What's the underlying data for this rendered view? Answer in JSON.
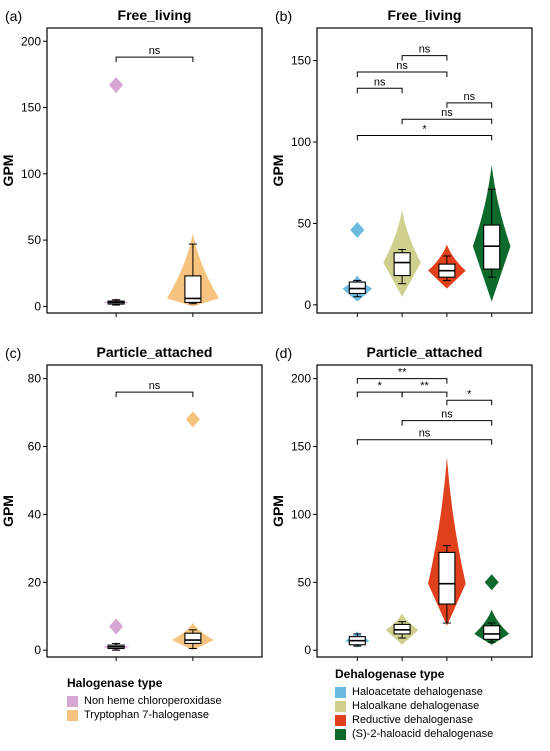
{
  "colors": {
    "non_heme": "#D7A7D3",
    "tryptophan": "#F6C37F",
    "haloacetate": "#6BBBE0",
    "haloalkane": "#CFCF8E",
    "reductive": "#E0401B",
    "haloacid": "#0E6A2C"
  },
  "legends": {
    "halogenase": {
      "title": "Halogenase type",
      "items": [
        {
          "label": "Non heme chloroperoxidase",
          "color_key": "non_heme"
        },
        {
          "label": "Tryptophan 7-halogenase",
          "color_key": "tryptophan"
        }
      ]
    },
    "dehalogenase": {
      "title": "Dehalogenase type",
      "items": [
        {
          "label": "Haloacetate dehalogenase",
          "color_key": "haloacetate"
        },
        {
          "label": "Haloalkane dehalogenase",
          "color_key": "haloalkane"
        },
        {
          "label": "Reductive dehalogenase",
          "color_key": "reductive"
        },
        {
          "label": "(S)-2-haloacid dehalogenase",
          "color_key": "haloacid"
        }
      ]
    }
  },
  "chart_data": [
    {
      "panel": "(a)",
      "type": "violin+box",
      "title": "Free_living",
      "ylabel": "GPM",
      "ylim": [
        -5,
        210
      ],
      "yticks": [
        0,
        50,
        100,
        150,
        200
      ],
      "groups": [
        {
          "color_key": "non_heme",
          "min": 1,
          "q1": 2,
          "median": 3,
          "q3": 4,
          "max": 5,
          "outliers": [
            167
          ],
          "violin_range": [
            1,
            6
          ]
        },
        {
          "color_key": "tryptophan",
          "min": 2,
          "q1": 3,
          "median": 6,
          "q3": 23,
          "max": 47,
          "outliers": [],
          "violin_range": [
            0,
            55
          ]
        }
      ],
      "comparisons": [
        {
          "from": 0,
          "to": 1,
          "label": "ns",
          "y": 188
        }
      ]
    },
    {
      "panel": "(b)",
      "type": "violin+box",
      "title": "Free_living",
      "ylabel": "GPM",
      "ylim": [
        -5,
        170
      ],
      "yticks": [
        0,
        50,
        100,
        150
      ],
      "groups": [
        {
          "color_key": "haloacetate",
          "min": 5,
          "q1": 7,
          "median": 10,
          "q3": 14,
          "max": 15,
          "outliers": [
            46
          ],
          "violin_range": [
            2,
            18
          ]
        },
        {
          "color_key": "haloalkane",
          "min": 13,
          "q1": 18,
          "median": 26,
          "q3": 32,
          "max": 34,
          "outliers": [],
          "violin_range": [
            5,
            58
          ]
        },
        {
          "color_key": "reductive",
          "min": 15,
          "q1": 17,
          "median": 21,
          "q3": 25,
          "max": 30,
          "outliers": [],
          "violin_range": [
            10,
            37
          ]
        },
        {
          "color_key": "haloacid",
          "min": 17,
          "q1": 22,
          "median": 36,
          "q3": 49,
          "max": 71,
          "outliers": [],
          "violin_range": [
            2,
            86
          ]
        }
      ],
      "comparisons": [
        {
          "from": 0,
          "to": 1,
          "label": "ns",
          "y": 133
        },
        {
          "from": 0,
          "to": 2,
          "label": "ns",
          "y": 143
        },
        {
          "from": 1,
          "to": 2,
          "label": "ns",
          "y": 153
        },
        {
          "from": 2,
          "to": 3,
          "label": "ns",
          "y": 124
        },
        {
          "from": 1,
          "to": 3,
          "label": "ns",
          "y": 114
        },
        {
          "from": 0,
          "to": 3,
          "label": "*",
          "y": 104
        }
      ]
    },
    {
      "panel": "(c)",
      "type": "violin+box",
      "title": "Particle_attached",
      "ylabel": "GPM",
      "ylim": [
        -2,
        84
      ],
      "yticks": [
        0,
        20,
        40,
        60,
        80
      ],
      "groups": [
        {
          "color_key": "non_heme",
          "min": 0,
          "q1": 0.5,
          "median": 1,
          "q3": 1.5,
          "max": 2,
          "outliers": [
            7
          ],
          "violin_range": [
            0,
            2
          ]
        },
        {
          "color_key": "tryptophan",
          "min": 0.5,
          "q1": 2,
          "median": 3,
          "q3": 5,
          "max": 6,
          "outliers": [
            68
          ],
          "violin_range": [
            0,
            8
          ]
        }
      ],
      "comparisons": [
        {
          "from": 0,
          "to": 1,
          "label": "ns",
          "y": 76
        }
      ]
    },
    {
      "panel": "(d)",
      "type": "violin+box",
      "title": "Particle_attached",
      "ylabel": "GPM",
      "ylim": [
        -5,
        210
      ],
      "yticks": [
        0,
        50,
        100,
        150,
        200
      ],
      "groups": [
        {
          "color_key": "haloacetate",
          "min": 3,
          "q1": 4,
          "median": 7,
          "q3": 10,
          "max": 12,
          "outliers": [],
          "violin_range": [
            2,
            14
          ]
        },
        {
          "color_key": "haloalkane",
          "min": 9,
          "q1": 12,
          "median": 15,
          "q3": 19,
          "max": 21,
          "outliers": [],
          "violin_range": [
            4,
            27
          ]
        },
        {
          "color_key": "reductive",
          "min": 20,
          "q1": 34,
          "median": 49,
          "q3": 72,
          "max": 77,
          "outliers": [],
          "violin_range": [
            18,
            142
          ]
        },
        {
          "color_key": "haloacid",
          "min": 6,
          "q1": 8,
          "median": 12,
          "q3": 18,
          "max": 20,
          "outliers": [
            50
          ],
          "violin_range": [
            4,
            30
          ]
        }
      ],
      "comparisons": [
        {
          "from": 0,
          "to": 2,
          "label": "**",
          "y": 200
        },
        {
          "from": 0,
          "to": 1,
          "label": "*",
          "y": 190
        },
        {
          "from": 1,
          "to": 2,
          "label": "**",
          "y": 190
        },
        {
          "from": 2,
          "to": 3,
          "label": "*",
          "y": 184
        },
        {
          "from": 1,
          "to": 3,
          "label": "ns",
          "y": 169
        },
        {
          "from": 0,
          "to": 3,
          "label": "ns",
          "y": 155
        }
      ]
    }
  ]
}
